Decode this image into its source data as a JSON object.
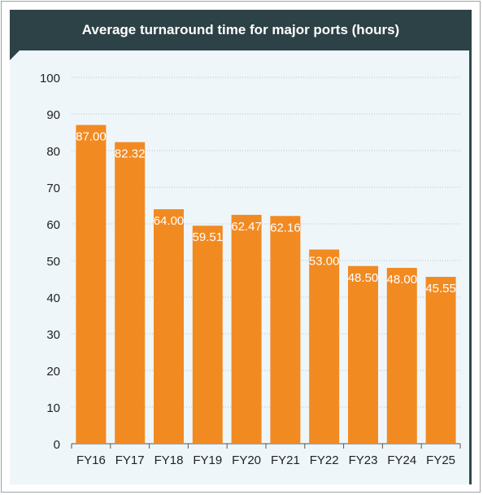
{
  "chart_data": {
    "type": "bar",
    "title": "Average turnaround time for major ports (hours)",
    "categories": [
      "FY16",
      "FY17",
      "FY18",
      "FY19",
      "FY20",
      "FY21",
      "FY22",
      "FY23",
      "FY24",
      "FY25"
    ],
    "values": [
      87.0,
      82.32,
      64.0,
      59.51,
      62.47,
      62.16,
      53.0,
      48.5,
      48.0,
      45.55
    ],
    "value_labels": [
      "87.00",
      "82.32",
      "64.00",
      "59.51",
      "62.47",
      "62.16",
      "53.00",
      "48.50",
      "48.00",
      "45.55"
    ],
    "ylim": [
      0,
      100
    ],
    "yticks": [
      0,
      10,
      20,
      30,
      40,
      50,
      60,
      70,
      80,
      90,
      100
    ],
    "xlabel": "",
    "ylabel": "",
    "grid": true,
    "colors": {
      "bar": "#f28a22",
      "label": "#ffffff",
      "title_bg": "#2c4246",
      "panel_bg": "#eef6fa",
      "grid": "#b8c4c8"
    }
  }
}
